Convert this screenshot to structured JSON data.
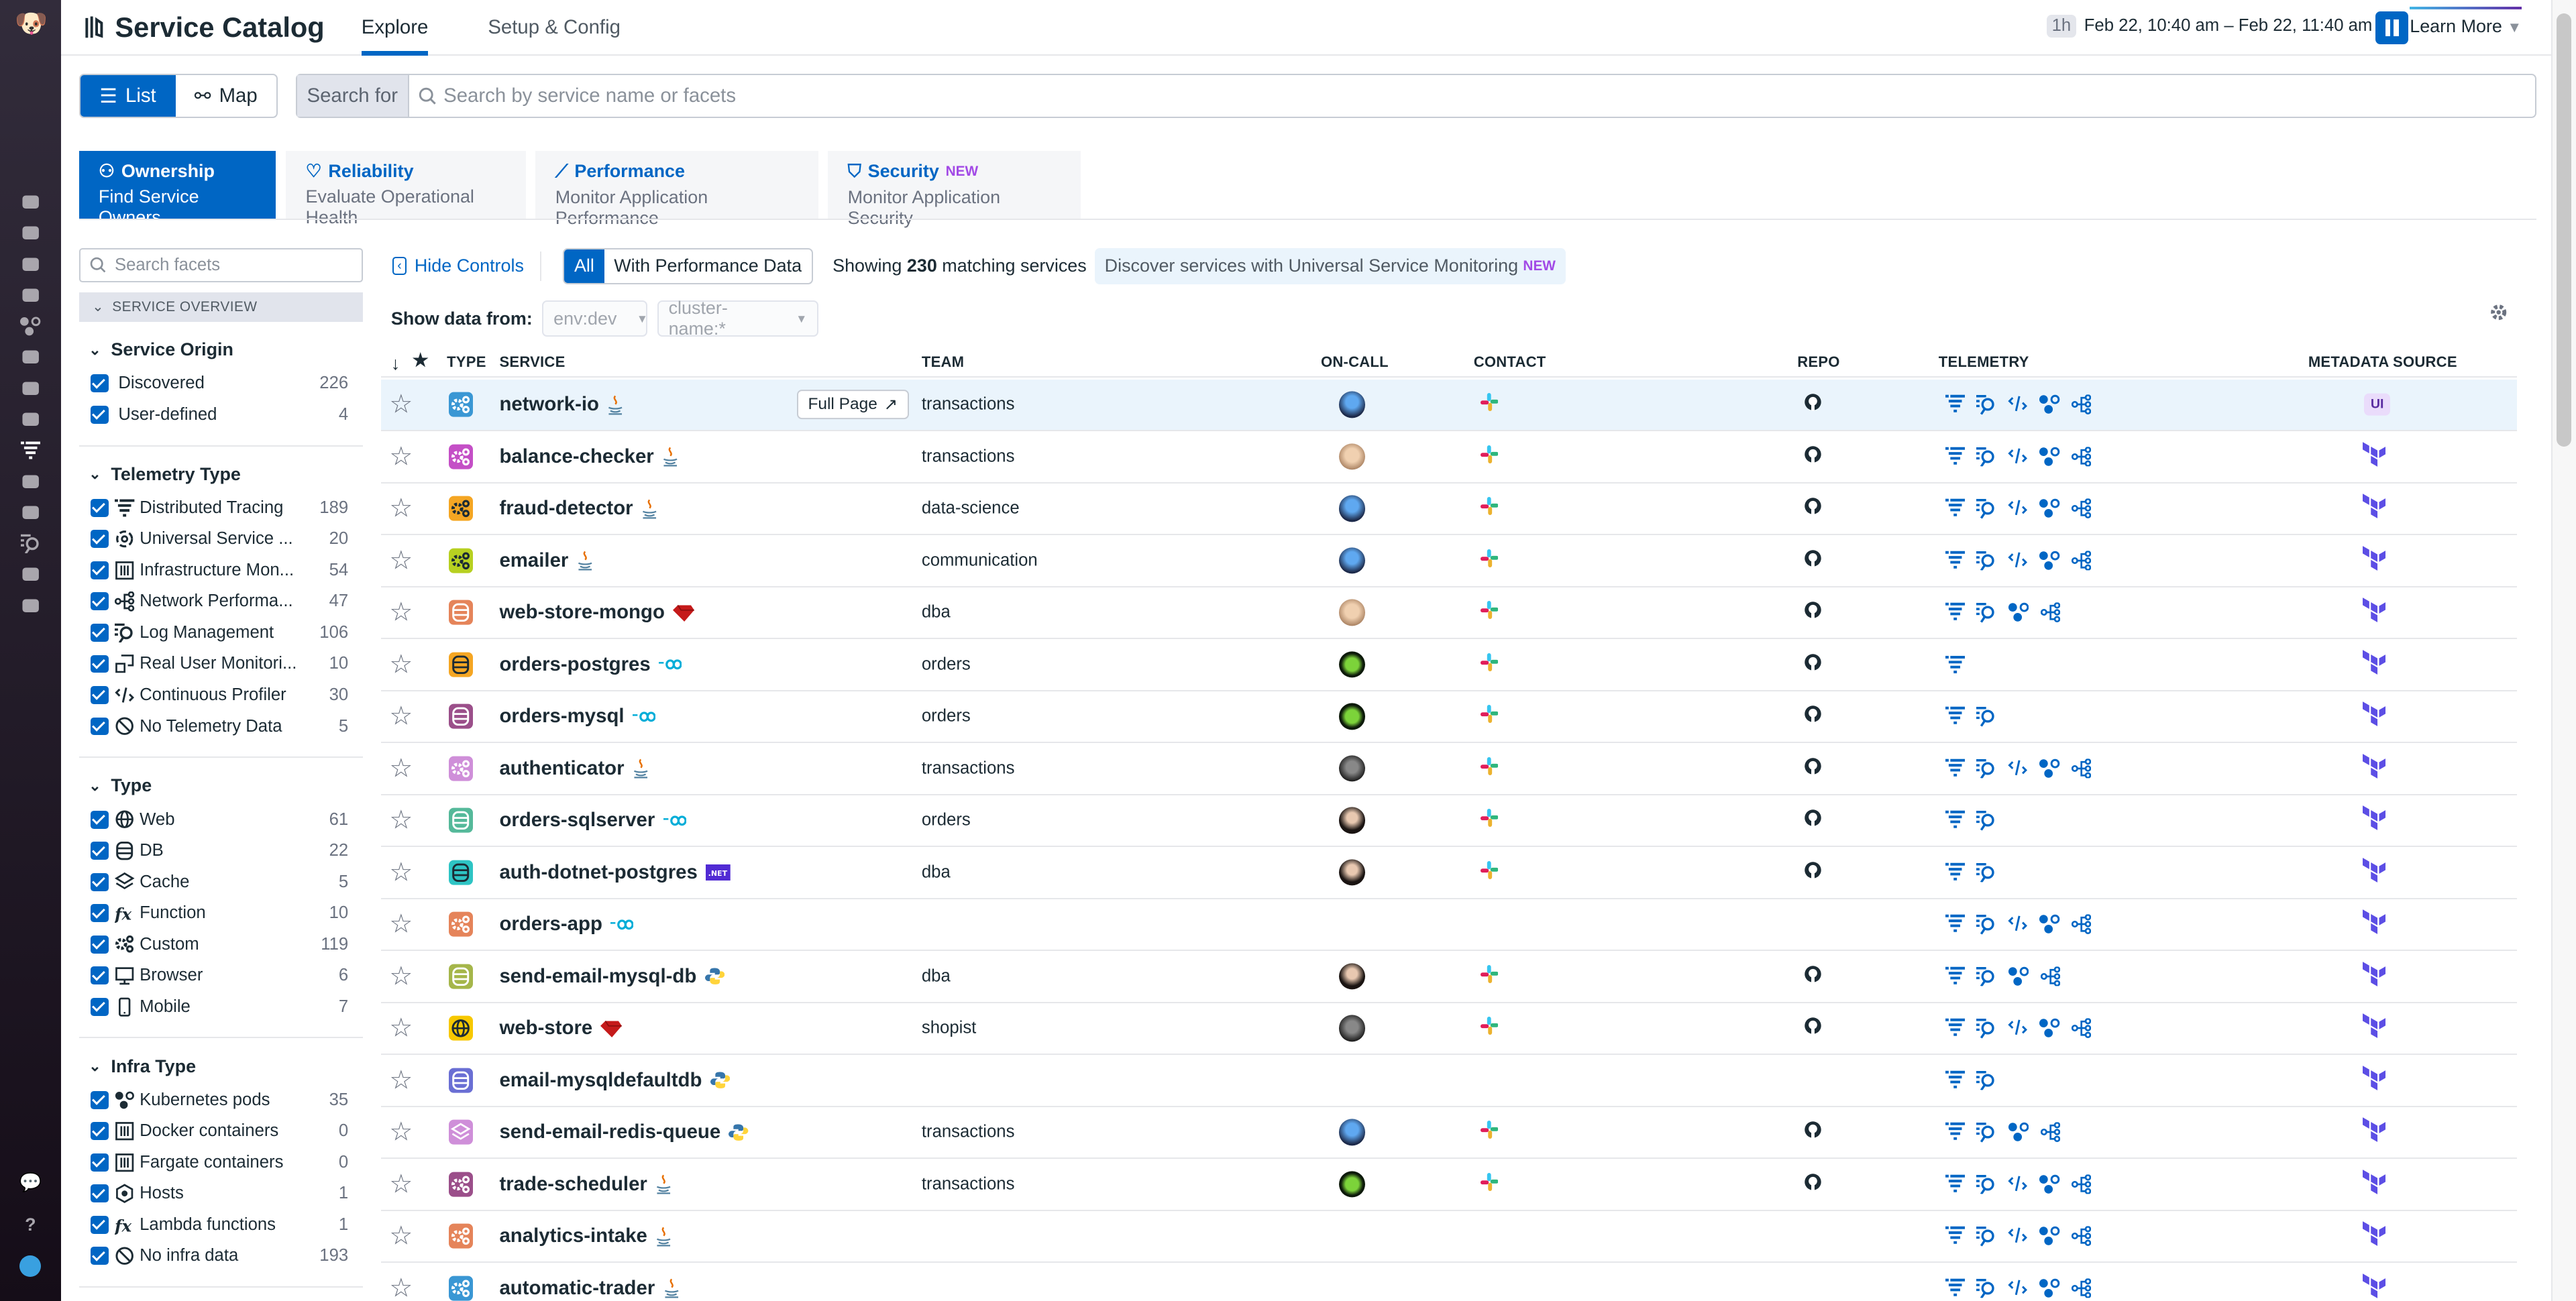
{
  "header": {
    "title": "Service Catalog",
    "tabs": [
      {
        "label": "Explore",
        "active": true
      },
      {
        "label": "Setup & Config",
        "active": false
      }
    ],
    "time_preset": "1h",
    "time_range": "Feb 22, 10:40 am – Feb 22, 11:40 am",
    "learn_more": "Learn More"
  },
  "view_toggle": {
    "list": "List",
    "map": "Map",
    "selected": "List"
  },
  "search": {
    "label": "Search for",
    "placeholder": "Search by service name or facets",
    "value": ""
  },
  "category_tabs": [
    {
      "title": "Ownership",
      "subtitle": "Find Service Owners",
      "icon": "ownership-icon",
      "active": true,
      "badge": ""
    },
    {
      "title": "Reliability",
      "subtitle": "Evaluate Operational Health",
      "icon": "heartbeat-icon",
      "active": false,
      "badge": ""
    },
    {
      "title": "Performance",
      "subtitle": "Monitor Application Performance",
      "icon": "chart-line-icon",
      "active": false,
      "badge": ""
    },
    {
      "title": "Security",
      "subtitle": "Monitor Application Security",
      "icon": "shield-icon",
      "active": false,
      "badge": "NEW"
    }
  ],
  "facets": {
    "search_placeholder": "Search facets",
    "section": "SERVICE OVERVIEW",
    "groups": [
      {
        "title": "Service Origin",
        "items": [
          {
            "label": "Discovered",
            "count": "226",
            "icon": ""
          },
          {
            "label": "User-defined",
            "count": "4",
            "icon": ""
          }
        ]
      },
      {
        "title": "Telemetry Type",
        "items": [
          {
            "label": "Distributed Tracing",
            "count": "189",
            "icon": "tracing"
          },
          {
            "label": "Universal Service ...",
            "count": "20",
            "icon": "usm"
          },
          {
            "label": "Infrastructure Mon...",
            "count": "54",
            "icon": "infra-box"
          },
          {
            "label": "Network Performa...",
            "count": "47",
            "icon": "network"
          },
          {
            "label": "Log Management",
            "count": "106",
            "icon": "logs"
          },
          {
            "label": "Real User Monitori...",
            "count": "10",
            "icon": "rum"
          },
          {
            "label": "Continuous Profiler",
            "count": "30",
            "icon": "profiler"
          },
          {
            "label": "No Telemetry Data",
            "count": "5",
            "icon": "none"
          }
        ]
      },
      {
        "title": "Type",
        "items": [
          {
            "label": "Web",
            "count": "61",
            "icon": "web"
          },
          {
            "label": "DB",
            "count": "22",
            "icon": "db"
          },
          {
            "label": "Cache",
            "count": "5",
            "icon": "cache"
          },
          {
            "label": "Function",
            "count": "10",
            "icon": "function"
          },
          {
            "label": "Custom",
            "count": "119",
            "icon": "custom"
          },
          {
            "label": "Browser",
            "count": "6",
            "icon": "browser"
          },
          {
            "label": "Mobile",
            "count": "7",
            "icon": "mobile"
          }
        ]
      },
      {
        "title": "Infra Type",
        "items": [
          {
            "label": "Kubernetes pods",
            "count": "35",
            "icon": "infra"
          },
          {
            "label": "Docker containers",
            "count": "0",
            "icon": "infra-box"
          },
          {
            "label": "Fargate containers",
            "count": "0",
            "icon": "infra-box"
          },
          {
            "label": "Hosts",
            "count": "1",
            "icon": "host"
          },
          {
            "label": "Lambda functions",
            "count": "1",
            "icon": "function"
          },
          {
            "label": "No infra data",
            "count": "193",
            "icon": "none"
          }
        ]
      }
    ]
  },
  "controls": {
    "hide": "Hide Controls",
    "filter_all": "All",
    "filter_perf": "With Performance Data",
    "showing_prefix": "Showing",
    "showing_count": "230",
    "showing_suffix": "matching services",
    "discover": "Discover services with Universal Service Monitoring",
    "discover_badge": "NEW",
    "show_data_from": "Show data from:",
    "env": "env:dev",
    "cluster": "cluster-name:*"
  },
  "table": {
    "columns": {
      "type": "TYPE",
      "service": "SERVICE",
      "team": "TEAM",
      "oncall": "ON-CALL",
      "contact": "CONTACT",
      "repo": "REPO",
      "telemetry": "TELEMETRY",
      "metadata": "METADATA SOURCE"
    },
    "full_page": "Full Page",
    "rows": [
      {
        "service": "network-io",
        "type": "custom",
        "color": "#3a97d4",
        "lang": "java",
        "team": "transactions",
        "oncall": "blue",
        "contact": true,
        "repo": true,
        "telemetry": [
          "tracing",
          "logs",
          "profiler",
          "infra",
          "network"
        ],
        "meta": "UI",
        "selected": true
      },
      {
        "service": "balance-checker",
        "type": "custom",
        "color": "#c44fc6",
        "lang": "java",
        "team": "transactions",
        "oncall": "light",
        "contact": true,
        "repo": true,
        "telemetry": [
          "tracing",
          "logs",
          "profiler",
          "infra",
          "network"
        ],
        "meta": "terraform"
      },
      {
        "service": "fraud-detector",
        "type": "custom",
        "color": "#f5a623",
        "lang": "java",
        "team": "data-science",
        "oncall": "blue",
        "contact": true,
        "repo": true,
        "telemetry": [
          "tracing",
          "logs",
          "profiler",
          "infra",
          "network"
        ],
        "meta": "terraform"
      },
      {
        "service": "emailer",
        "type": "custom",
        "color": "#b7d021",
        "lang": "java",
        "team": "communication",
        "oncall": "blue",
        "contact": true,
        "repo": true,
        "telemetry": [
          "tracing",
          "logs",
          "profiler",
          "infra",
          "network"
        ],
        "meta": "terraform"
      },
      {
        "service": "web-store-mongo",
        "type": "db",
        "color": "#e5845a",
        "lang": "ruby",
        "team": "dba",
        "oncall": "light",
        "contact": true,
        "repo": true,
        "telemetry": [
          "tracing",
          "logs",
          "infra",
          "network"
        ],
        "meta": "terraform"
      },
      {
        "service": "orders-postgres",
        "type": "db",
        "color": "#f5a623",
        "lang": "go",
        "team": "orders",
        "oncall": "invader",
        "contact": true,
        "repo": true,
        "telemetry": [
          "tracing"
        ],
        "meta": "terraform"
      },
      {
        "service": "orders-mysql",
        "type": "db",
        "color": "#9b4f8a",
        "lang": "go",
        "team": "orders",
        "oncall": "invader",
        "contact": true,
        "repo": true,
        "telemetry": [
          "tracing",
          "logs"
        ],
        "meta": "terraform"
      },
      {
        "service": "authenticator",
        "type": "custom",
        "color": "#cf8fd9",
        "lang": "java",
        "team": "transactions",
        "oncall": "dark",
        "contact": true,
        "repo": true,
        "telemetry": [
          "tracing",
          "logs",
          "profiler",
          "infra",
          "network"
        ],
        "meta": "terraform"
      },
      {
        "service": "orders-sqlserver",
        "type": "db",
        "color": "#55b99a",
        "lang": "go",
        "team": "orders",
        "oncall": "woman",
        "contact": true,
        "repo": true,
        "telemetry": [
          "tracing",
          "logs"
        ],
        "meta": "terraform"
      },
      {
        "service": "auth-dotnet-postgres",
        "type": "db",
        "color": "#2ec4c4",
        "lang": "dotnet",
        "team": "dba",
        "oncall": "woman",
        "contact": true,
        "repo": true,
        "telemetry": [
          "tracing",
          "logs"
        ],
        "meta": "terraform"
      },
      {
        "service": "orders-app",
        "type": "custom",
        "color": "#e5845a",
        "lang": "go",
        "team": "",
        "oncall": "",
        "contact": false,
        "repo": false,
        "telemetry": [
          "tracing",
          "logs",
          "profiler",
          "infra",
          "network"
        ],
        "meta": "terraform"
      },
      {
        "service": "send-email-mysql-db",
        "type": "db",
        "color": "#a5b64a",
        "lang": "python",
        "team": "dba",
        "oncall": "woman",
        "contact": true,
        "repo": true,
        "telemetry": [
          "tracing",
          "logs",
          "infra",
          "network"
        ],
        "meta": "terraform"
      },
      {
        "service": "web-store",
        "type": "web",
        "color": "#f7c800",
        "lang": "ruby",
        "team": "shopist",
        "oncall": "dark",
        "contact": true,
        "repo": true,
        "telemetry": [
          "tracing",
          "logs",
          "profiler",
          "infra",
          "network"
        ],
        "meta": "terraform"
      },
      {
        "service": "email-mysqldefaultdb",
        "type": "db",
        "color": "#6a6fd4",
        "lang": "python",
        "team": "",
        "oncall": "",
        "contact": false,
        "repo": false,
        "telemetry": [
          "tracing",
          "logs"
        ],
        "meta": "terraform"
      },
      {
        "service": "send-email-redis-queue",
        "type": "cache",
        "color": "#cf8fd9",
        "lang": "python",
        "team": "transactions",
        "oncall": "blue",
        "contact": true,
        "repo": true,
        "telemetry": [
          "tracing",
          "logs",
          "infra",
          "network"
        ],
        "meta": "terraform"
      },
      {
        "service": "trade-scheduler",
        "type": "custom",
        "color": "#9b4f8a",
        "lang": "java",
        "team": "transactions",
        "oncall": "invader",
        "contact": true,
        "repo": true,
        "telemetry": [
          "tracing",
          "logs",
          "profiler",
          "infra",
          "network"
        ],
        "meta": "terraform"
      },
      {
        "service": "analytics-intake",
        "type": "custom",
        "color": "#e5845a",
        "lang": "java",
        "team": "",
        "oncall": "",
        "contact": false,
        "repo": false,
        "telemetry": [
          "tracing",
          "logs",
          "profiler",
          "infra",
          "network"
        ],
        "meta": "terraform"
      },
      {
        "service": "automatic-trader",
        "type": "custom",
        "color": "#3a97d4",
        "lang": "java",
        "team": "",
        "oncall": "",
        "contact": false,
        "repo": false,
        "telemetry": [
          "tracing",
          "logs",
          "profiler",
          "infra",
          "network"
        ],
        "meta": "terraform"
      }
    ]
  },
  "colors": {
    "accent": "#0066c4",
    "nav": "#2b2536",
    "selected_row": "#eaf4fc",
    "terraform": "#5c4ee5",
    "new_badge": "#a24ae6"
  }
}
